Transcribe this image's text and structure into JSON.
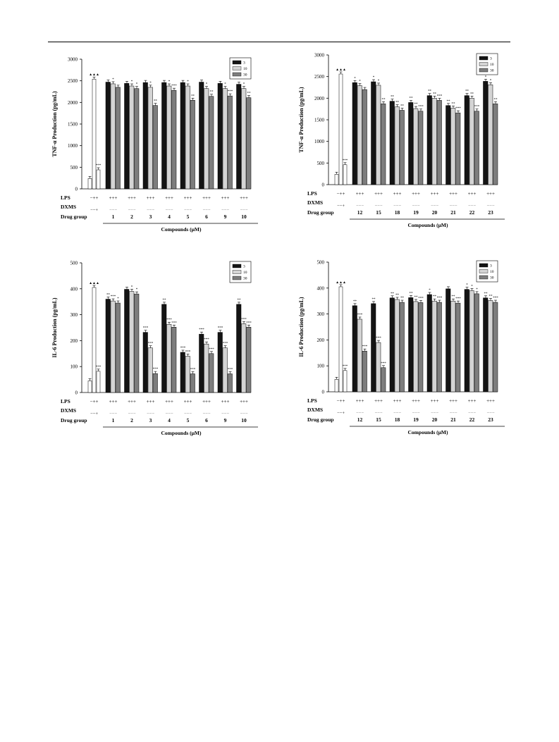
{
  "legend": [
    "3",
    "10",
    "30"
  ],
  "colors": {
    "c3": "#141414",
    "c10": "#d4d4d4",
    "c30": "#7d7d7d",
    "control": "#ffffff"
  },
  "chart_data": [
    {
      "type": "bar",
      "ylabel": "TNF-α  Production (pg/mL)",
      "ylim": [
        0,
        3000
      ],
      "ystep": 500,
      "xlabel": "Compounds (μM)",
      "series_names": [
        "3",
        "10",
        "30"
      ],
      "control": {
        "values": [
          240,
          2540,
          440
        ],
        "lps": "−++",
        "dxms": "−−+",
        "marks": [
          "",
          "▲▲▲",
          "***"
        ]
      },
      "categories": [
        "1",
        "2",
        "3",
        "4",
        "5",
        "6",
        "9",
        "10"
      ],
      "lps_row": [
        "+++",
        "+++",
        "+++",
        "+++",
        "+++",
        "+++",
        "+++",
        "+++"
      ],
      "dxms_row": [
        "−−−",
        "−−−",
        "−−−",
        "−−−",
        "−−−",
        "−−−",
        "−−−",
        "−−−"
      ],
      "series": [
        {
          "name": "3",
          "values": [
            2470,
            2440,
            2460,
            2460,
            2460,
            2470,
            2440,
            2420
          ]
        },
        {
          "name": "10",
          "values": [
            2430,
            2380,
            2350,
            2380,
            2380,
            2320,
            2320,
            2320
          ]
        },
        {
          "name": "30",
          "values": [
            2350,
            2320,
            1930,
            2280,
            2050,
            2140,
            2150,
            2110
          ]
        }
      ],
      "marks": [
        [
          "",
          "*",
          ""
        ],
        [
          "",
          "*",
          "*"
        ],
        [
          "",
          "*",
          "**"
        ],
        [
          "",
          "*",
          "***"
        ],
        [
          "",
          "*",
          "**"
        ],
        [
          "",
          "*",
          "**"
        ],
        [
          "",
          "*",
          "***"
        ],
        [
          "",
          "*",
          "**"
        ]
      ]
    },
    {
      "type": "bar",
      "ylabel": "TNF-α  Production (pg/mL)",
      "ylim": [
        0,
        3000
      ],
      "ystep": 500,
      "xlabel": "Compounds (μM)",
      "series_names": [
        "3",
        "10",
        "30"
      ],
      "control": {
        "values": [
          240,
          2560,
          460
        ],
        "lps": "−++",
        "dxms": "−−+",
        "marks": [
          "",
          "▲▲▲",
          "***"
        ]
      },
      "categories": [
        "12",
        "15",
        "18",
        "19",
        "20",
        "21",
        "22",
        "23"
      ],
      "lps_row": [
        "+++",
        "+++",
        "+++",
        "+++",
        "+++",
        "+++",
        "+++",
        "+++"
      ],
      "dxms_row": [
        "−−−",
        "−−−",
        "−−−",
        "−−−",
        "−−−",
        "−−−",
        "−−−",
        "−−−"
      ],
      "series": [
        {
          "name": "3",
          "values": [
            2360,
            2380,
            1930,
            1900,
            2060,
            1830,
            2060,
            2390
          ]
        },
        {
          "name": "10",
          "values": [
            2290,
            2300,
            1800,
            1760,
            2000,
            1770,
            2000,
            2310
          ]
        },
        {
          "name": "30",
          "values": [
            2200,
            1870,
            1720,
            1700,
            1950,
            1660,
            1700,
            1870
          ]
        }
      ],
      "marks": [
        [
          "*",
          "*",
          ""
        ],
        [
          "*",
          "*",
          "**"
        ],
        [
          "**",
          "**",
          "**"
        ],
        [
          "**",
          "**",
          "***"
        ],
        [
          "**",
          "**",
          "***"
        ],
        [
          "**",
          "**",
          "***"
        ],
        [
          "**",
          "**",
          "***"
        ],
        [
          "*",
          "*",
          "**"
        ]
      ]
    },
    {
      "type": "bar",
      "ylabel": "IL-6  Production (pg/mL)",
      "ylim": [
        0,
        500
      ],
      "ystep": 100,
      "xlabel": "Compounds (μM)",
      "series_names": [
        "3",
        "10",
        "30"
      ],
      "control": {
        "values": [
          45,
          405,
          82
        ],
        "lps": "−++",
        "dxms": "−−+",
        "marks": [
          "",
          "▲▲▲",
          "***"
        ]
      },
      "categories": [
        "1",
        "2",
        "3",
        "4",
        "5",
        "6",
        "9",
        "10"
      ],
      "lps_row": [
        "+++",
        "+++",
        "+++",
        "+++",
        "+++",
        "+++",
        "+++",
        "+++"
      ],
      "dxms_row": [
        "−−−",
        "−−−",
        "−−−",
        "−−−",
        "−−−",
        "−−−",
        "−−−",
        "−−−"
      ],
      "series": [
        {
          "name": "3",
          "values": [
            360,
            398,
            232,
            340,
            155,
            225,
            232,
            340
          ]
        },
        {
          "name": "10",
          "values": [
            353,
            390,
            172,
            263,
            140,
            187,
            172,
            265
          ]
        },
        {
          "name": "30",
          "values": [
            345,
            380,
            73,
            252,
            72,
            150,
            72,
            252
          ]
        }
      ],
      "marks": [
        [
          "**",
          "***",
          "*"
        ],
        [
          "",
          "*",
          "*"
        ],
        [
          "***",
          "***",
          "***"
        ],
        [
          "**",
          "***",
          "***"
        ],
        [
          "***",
          "***",
          "***"
        ],
        [
          "***",
          "***",
          "***"
        ],
        [
          "***",
          "***",
          "***"
        ],
        [
          "**",
          "***",
          "***"
        ]
      ]
    },
    {
      "type": "bar",
      "ylabel": "IL-6  Production (pg/mL)",
      "ylim": [
        0,
        500
      ],
      "ystep": 100,
      "xlabel": "Compounds (μM)",
      "series_names": [
        "3",
        "10",
        "30"
      ],
      "control": {
        "values": [
          48,
          405,
          82
        ],
        "lps": "−++",
        "dxms": "−−+",
        "marks": [
          "",
          "▲▲▲",
          "***"
        ]
      },
      "categories": [
        "12",
        "15",
        "18",
        "19",
        "20",
        "21",
        "22",
        "23"
      ],
      "lps_row": [
        "+++",
        "+++",
        "+++",
        "+++",
        "+++",
        "+++",
        "+++",
        "+++"
      ],
      "dxms_row": [
        "−−−",
        "−−−",
        "−−−",
        "−−−",
        "−−−",
        "−−−",
        "−−−",
        "−−−"
      ],
      "series": [
        {
          "name": "3",
          "values": [
            332,
            340,
            362,
            363,
            375,
            397,
            395,
            362
          ]
        },
        {
          "name": "10",
          "values": [
            280,
            190,
            356,
            348,
            350,
            350,
            390,
            352
          ]
        },
        {
          "name": "30",
          "values": [
            157,
            93,
            345,
            344,
            345,
            342,
            378,
            345
          ]
        }
      ],
      "marks": [
        [
          "**",
          "***",
          "***"
        ],
        [
          "**",
          "***",
          "***"
        ],
        [
          "**",
          "**",
          "**"
        ],
        [
          "**",
          "**",
          "***"
        ],
        [
          "*",
          "**",
          "***"
        ],
        [
          "",
          "**",
          "***"
        ],
        [
          "*",
          "*",
          "*"
        ],
        [
          "**",
          "**",
          "***"
        ]
      ]
    }
  ],
  "row_labels": {
    "lps": "LPS",
    "dxms": "DXMS",
    "drug": "Drug group"
  }
}
